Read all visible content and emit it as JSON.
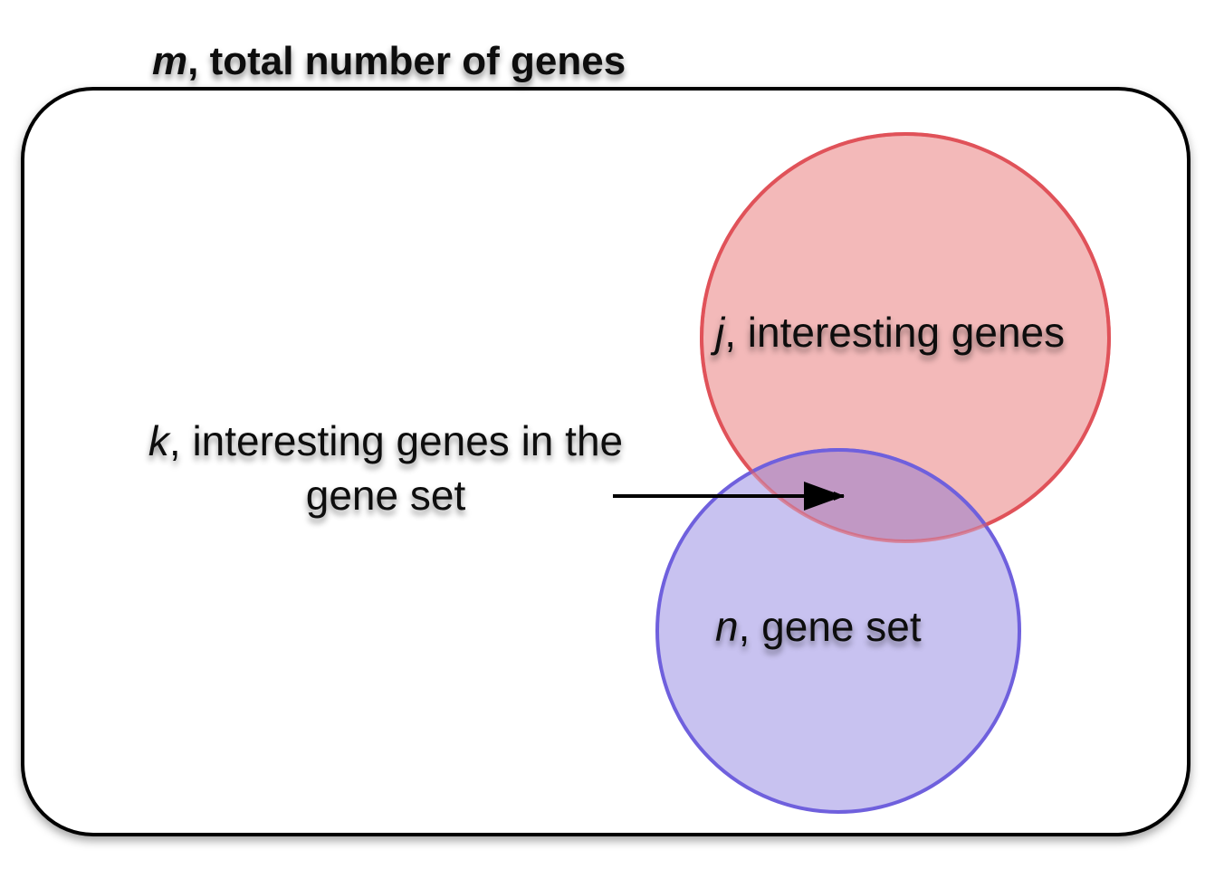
{
  "universe": {
    "symbol": "m",
    "label": ", total number of genes"
  },
  "interesting_genes": {
    "symbol": "j",
    "label": ", interesting genes",
    "fill": "#f3b9b9",
    "stroke": "#e0525a"
  },
  "gene_set": {
    "symbol": "n",
    "label": ", gene set",
    "fill": "#c8c2f0",
    "stroke": "#6f60dd"
  },
  "overlap": {
    "symbol": "k",
    "label_line1": ", interesting genes in the",
    "label_line2": "gene set",
    "fill": "#c198c4"
  }
}
